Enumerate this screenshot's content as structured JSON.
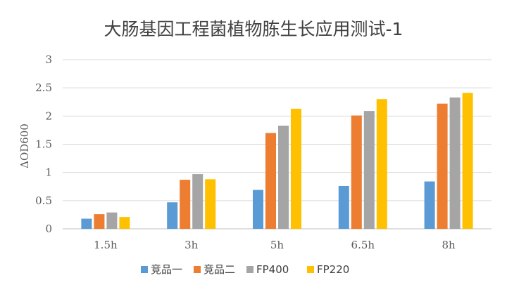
{
  "chart_data": {
    "type": "bar",
    "title": "大肠基因工程菌植物胨生长应用测试-1",
    "xlabel": "",
    "ylabel": "ΔOD600",
    "categories": [
      "1.5h",
      "3h",
      "5h",
      "6.5h",
      "8h"
    ],
    "ylim": [
      0,
      3
    ],
    "yticks": [
      0,
      0.5,
      1,
      1.5,
      2,
      2.5,
      3
    ],
    "grid": true,
    "legend_position": "bottom",
    "series": [
      {
        "name": "竞品一",
        "color": "#5B9BD5",
        "values": [
          0.18,
          0.47,
          0.69,
          0.76,
          0.84
        ]
      },
      {
        "name": "竞品二",
        "color": "#ED7D31",
        "values": [
          0.26,
          0.87,
          1.7,
          2.01,
          2.22
        ]
      },
      {
        "name": "FP400",
        "color": "#A5A5A5",
        "values": [
          0.29,
          0.97,
          1.83,
          2.09,
          2.33
        ]
      },
      {
        "name": "FP220",
        "color": "#FFC000",
        "values": [
          0.21,
          0.88,
          2.13,
          2.3,
          2.41
        ]
      }
    ]
  }
}
